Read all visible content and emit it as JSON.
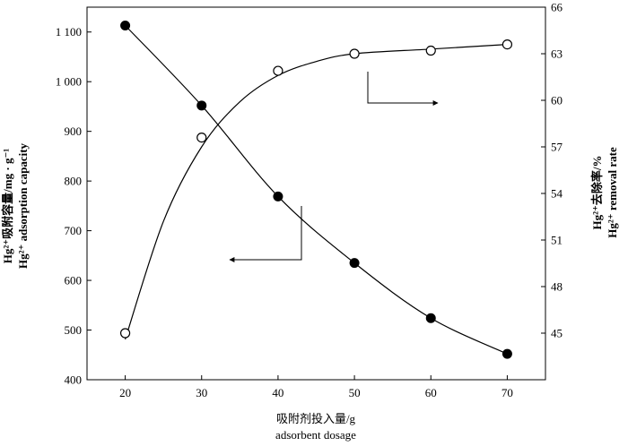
{
  "chart_data": {
    "type": "scatter",
    "x": [
      20,
      30,
      40,
      50,
      60,
      70
    ],
    "xlim": [
      15,
      75
    ],
    "x_ticks": [
      "20",
      "30",
      "40",
      "50",
      "60",
      "70"
    ],
    "xlabel": "吸附剂投入量/g",
    "xlabel_en": "adsorbent dosage",
    "y_left": {
      "lim": [
        400,
        1150
      ],
      "ticks": [
        "400",
        "500",
        "600",
        "700",
        "800",
        "900",
        "1 000",
        "1 100"
      ],
      "label_line1": "Hg²⁺吸附容量/mg · g⁻¹",
      "label_line2": "Hg²⁺ adsorption capacity"
    },
    "y_right": {
      "lim": [
        42,
        66
      ],
      "ticks": [
        "45",
        "48",
        "51",
        "54",
        "57",
        "60",
        "63",
        "66"
      ],
      "label_line1": "Hg²⁺去除率/%",
      "label_line2": "Hg²⁺ removal rate"
    },
    "series": [
      {
        "marker": "filled-circle",
        "axis": "left",
        "values": [
          1113,
          952,
          769,
          635,
          524,
          452
        ]
      },
      {
        "marker": "open-circle",
        "axis": "right",
        "values": [
          45.0,
          57.6,
          61.9,
          63.0,
          63.2,
          63.6
        ]
      }
    ],
    "annotations": [
      {
        "type": "arrow",
        "direction": "left",
        "points_to": "left-axis"
      },
      {
        "type": "arrow",
        "direction": "right",
        "points_to": "right-axis"
      }
    ],
    "grid": false,
    "line_color": "#000000"
  }
}
